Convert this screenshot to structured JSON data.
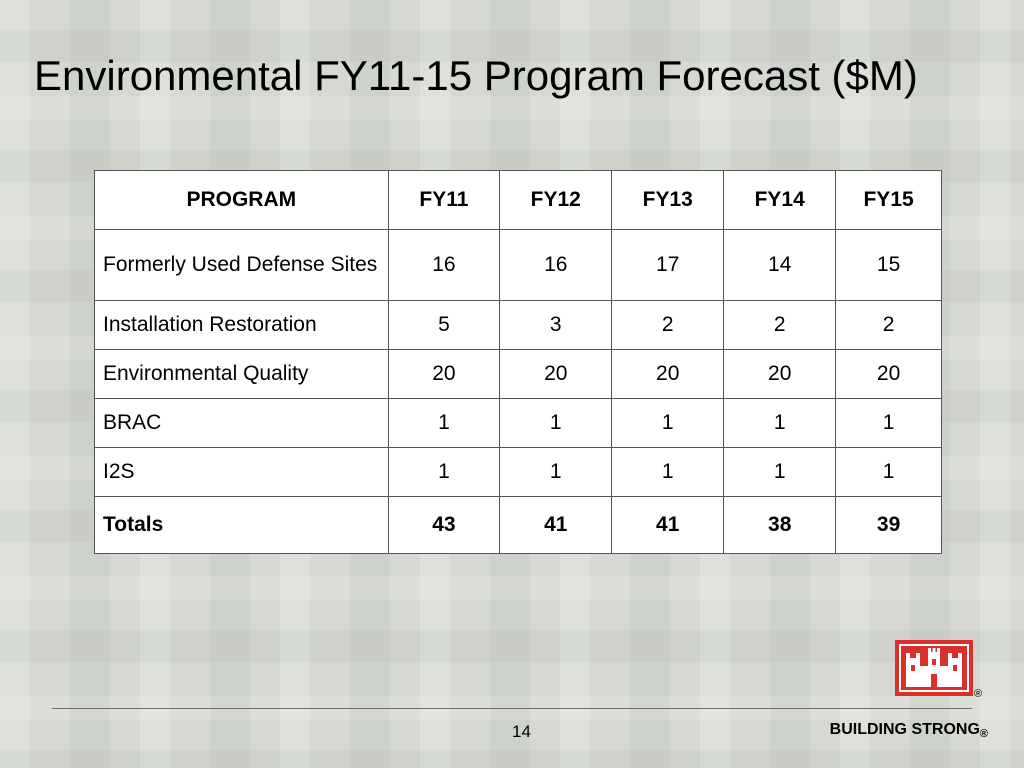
{
  "slide": {
    "title": "Environmental FY11-15 Program Forecast ($M)",
    "page_number": "14",
    "footer_brand": "BUILDING STRONG",
    "registered_mark": "®",
    "logo_icon": "castle-icon",
    "logo_color": "#d9302c"
  },
  "table": {
    "headers": [
      "PROGRAM",
      "FY11",
      "FY12",
      "FY13",
      "FY14",
      "FY15"
    ],
    "rows": [
      {
        "program": "Formerly Used Defense Sites",
        "values": [
          "16",
          "16",
          "17",
          "14",
          "15"
        ]
      },
      {
        "program": "Installation Restoration",
        "values": [
          "5",
          "3",
          "2",
          "2",
          "2"
        ]
      },
      {
        "program": "Environmental Quality",
        "values": [
          "20",
          "20",
          "20",
          "20",
          "20"
        ]
      },
      {
        "program": "BRAC",
        "values": [
          "1",
          "1",
          "1",
          "1",
          "1"
        ]
      },
      {
        "program": "I2S",
        "values": [
          "1",
          "1",
          "1",
          "1",
          "1"
        ]
      }
    ],
    "totals": {
      "label": "Totals",
      "values": [
        "43",
        "41",
        "41",
        "38",
        "39"
      ]
    }
  }
}
